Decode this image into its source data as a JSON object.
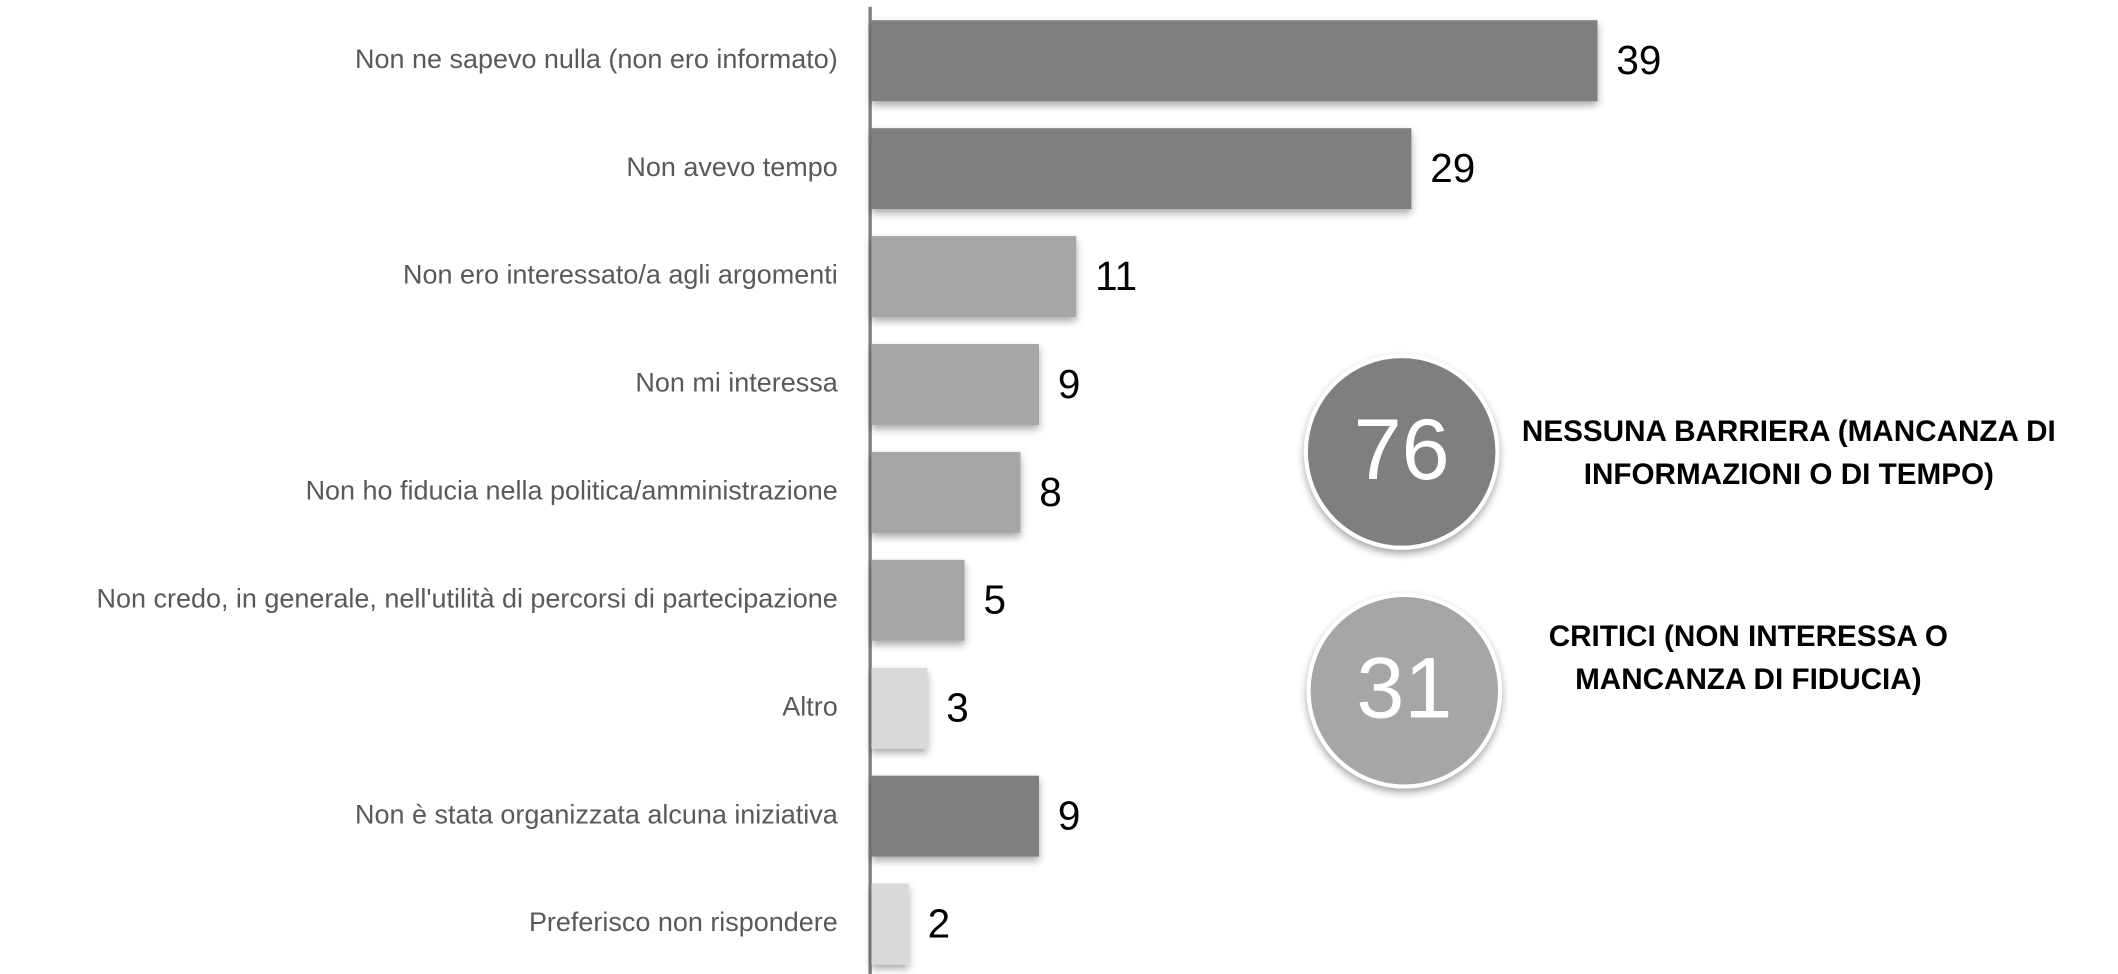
{
  "chart_data": {
    "type": "barh",
    "categories": [
      "Non ne sapevo nulla (non ero informato)",
      "Non avevo tempo",
      "Non ero interessato/a agli argomenti",
      "Non mi interessa",
      "Non ho fiducia nella politica/amministrazione",
      "Non credo, in generale, nell'utilità di percorsi di partecipazione",
      "Altro",
      "Non è stata organizzata alcuna iniziativa",
      "Preferisco non rispondere"
    ],
    "values": [
      39,
      29,
      11,
      9,
      8,
      5,
      3,
      9,
      2
    ],
    "colors": [
      "#7f7f7f",
      "#7f7f7f",
      "#a6a6a6",
      "#a6a6a6",
      "#a6a6a6",
      "#a6a6a6",
      "#d9d9d9",
      "#7f7f7f",
      "#d9d9d9"
    ],
    "annotations": [
      {
        "value": 76,
        "color": "#7f7f7f",
        "lines": [
          "NESSUNA BARRIERA (MANCANZA DI",
          "INFORMAZIONI O DI TEMPO)"
        ]
      },
      {
        "value": 31,
        "color": "#a6a6a6",
        "lines": [
          "CRITICI (NON INTERESSA O",
          "MANCANZA DI FIDUCIA)"
        ]
      }
    ]
  }
}
